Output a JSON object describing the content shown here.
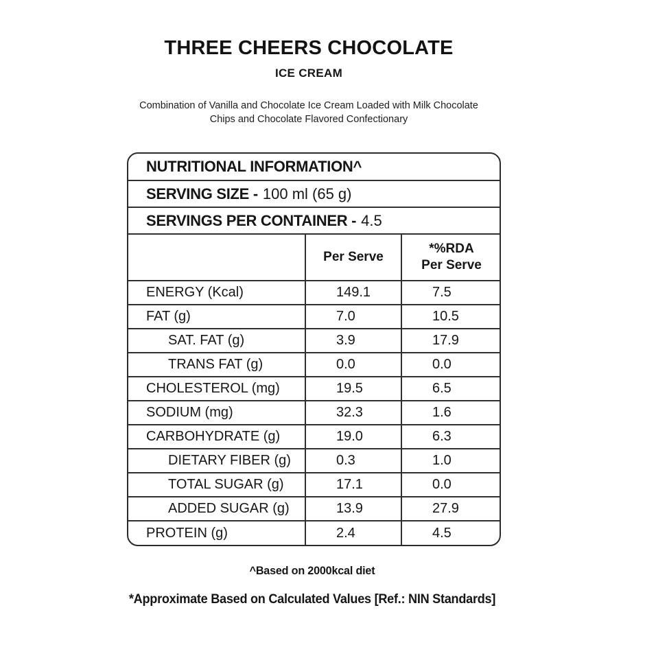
{
  "header": {
    "title": "THREE CHEERS CHOCOLATE",
    "subtitle": "ICE CREAM",
    "description_line1": "Combination of Vanilla and Chocolate Ice Cream Loaded with Milk Chocolate",
    "description_line2": "Chips and Chocolate Flavored Confectionary"
  },
  "nutrition_table": {
    "title": "NUTRITIONAL INFORMATION^",
    "serving_size": {
      "label": "SERVING SIZE -",
      "value": "100 ml (65 g)"
    },
    "servings_per_container": {
      "label": "SERVINGS PER CONTAINER -",
      "value": "4.5"
    },
    "columns": {
      "per_serve": "Per Serve",
      "rda_line1": "*%RDA",
      "rda_line2": "Per Serve"
    },
    "rows": [
      {
        "label": "ENERGY (Kcal)",
        "indent": false,
        "per_serve": "149.1",
        "rda_per_serve": "7.5"
      },
      {
        "label": "FAT (g)",
        "indent": false,
        "per_serve": "7.0",
        "rda_per_serve": "10.5"
      },
      {
        "label": "SAT. FAT (g)",
        "indent": true,
        "per_serve": "3.9",
        "rda_per_serve": "17.9"
      },
      {
        "label": "TRANS FAT (g)",
        "indent": true,
        "per_serve": "0.0",
        "rda_per_serve": "0.0"
      },
      {
        "label": "CHOLESTEROL (mg)",
        "indent": false,
        "per_serve": "19.5",
        "rda_per_serve": "6.5"
      },
      {
        "label": "SODIUM (mg)",
        "indent": false,
        "per_serve": "32.3",
        "rda_per_serve": "1.6"
      },
      {
        "label": "CARBOHYDRATE (g)",
        "indent": false,
        "per_serve": "19.0",
        "rda_per_serve": "6.3"
      },
      {
        "label": "DIETARY FIBER (g)",
        "indent": true,
        "per_serve": "0.3",
        "rda_per_serve": "1.0"
      },
      {
        "label": "TOTAL SUGAR (g)",
        "indent": true,
        "per_serve": "17.1",
        "rda_per_serve": "0.0"
      },
      {
        "label": "ADDED SUGAR (g)",
        "indent": true,
        "per_serve": "13.9",
        "rda_per_serve": "27.9"
      },
      {
        "label": "PROTEIN (g)",
        "indent": false,
        "per_serve": "2.4",
        "rda_per_serve": "4.5"
      }
    ]
  },
  "footnotes": {
    "diet_note": "^Based on 2000kcal diet",
    "approx_note": "*Approximate Based on Calculated Values  [Ref.: NIN Standards]"
  },
  "colors": {
    "text": "#161616",
    "border": "#2f2f2f",
    "background": "#ffffff"
  }
}
